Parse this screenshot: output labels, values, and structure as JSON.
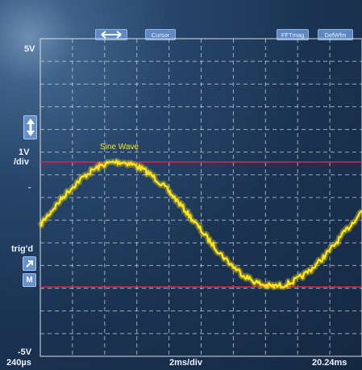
{
  "toolbar": {
    "arrows_icon": "left-right-arrows-icon",
    "cursor_label": "Cursor",
    "fft_label": "FFTmag",
    "defwfm_label": "DefWfm"
  },
  "left_panel": {
    "top_voltage": "5V",
    "volts_per_div_value": "1V",
    "volts_per_div_unit": "/div",
    "scale_icon": "up-down-arrows-icon",
    "ground_marker": "˜",
    "trig_status": "trig'd",
    "trigger_icon": "diagonal-arrow-icon",
    "mode_label": "M",
    "bottom_voltage": "-5V"
  },
  "bottom_bar": {
    "start_time": "240µs",
    "time_per_div": "2ms/div",
    "end_time": "20.24ms"
  },
  "waveform": {
    "label": "Sine Wave",
    "color": "#ffe414"
  },
  "cursors": {
    "color": "#d8283e"
  },
  "grid": {
    "on": true,
    "color": "#c9d3df"
  }
}
